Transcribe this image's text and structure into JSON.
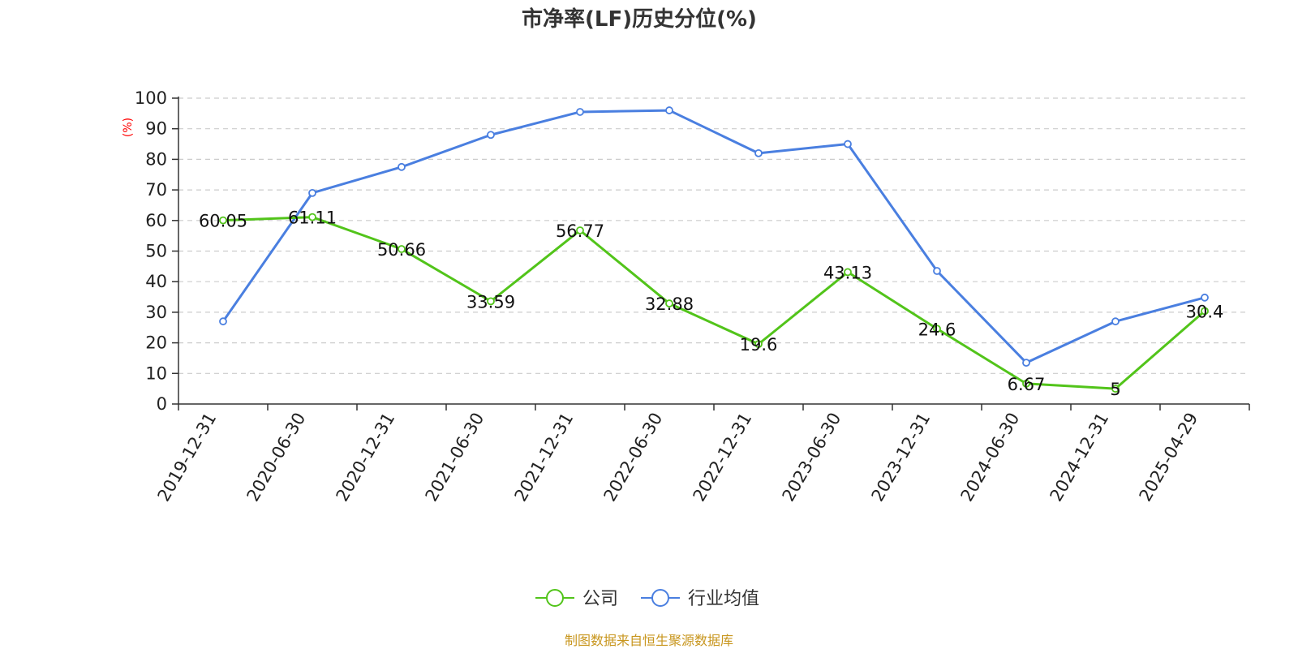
{
  "chart_data": {
    "type": "line",
    "title": "市净率(LF)历史分位(%)",
    "ylabel": "(%)",
    "xlabel": "",
    "ylim": [
      0,
      100
    ],
    "yticks": [
      0,
      10,
      20,
      30,
      40,
      50,
      60,
      70,
      80,
      90,
      100
    ],
    "categories": [
      "2019-12-31",
      "2020-06-30",
      "2020-12-31",
      "2021-06-30",
      "2021-12-31",
      "2022-06-30",
      "2022-12-31",
      "2023-06-30",
      "2023-12-31",
      "2024-06-30",
      "2024-12-31",
      "2025-04-29"
    ],
    "grid": true,
    "legend_position": "bottom",
    "series": [
      {
        "name": "公司",
        "color": "#52c41a",
        "values": [
          60.05,
          61.11,
          50.66,
          33.59,
          56.77,
          32.88,
          19.6,
          43.13,
          24.6,
          6.67,
          5,
          30.4
        ],
        "labels": [
          "60.05",
          "61.11",
          "50.66",
          "33.59",
          "56.77",
          "32.88",
          "19.6",
          "43.13",
          "24.6",
          "6.67",
          "5",
          "30.4"
        ]
      },
      {
        "name": "行业均值",
        "color": "#4a7fe0",
        "values": [
          27,
          69,
          77.5,
          88,
          95.5,
          96,
          82,
          85,
          43.5,
          13.5,
          27,
          34.8
        ]
      }
    ]
  },
  "source": "制图数据来自恒生聚源数据库"
}
